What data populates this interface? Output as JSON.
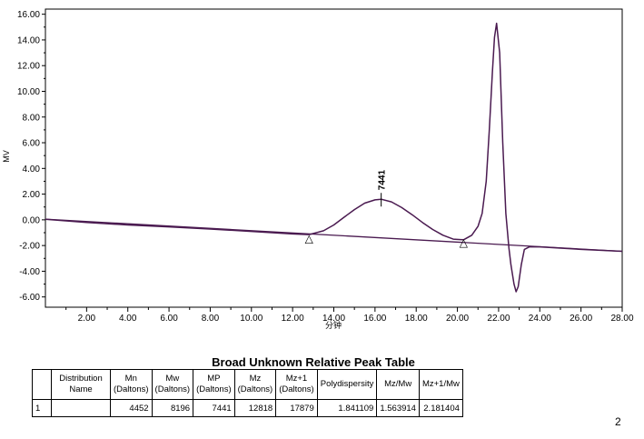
{
  "chart_data": {
    "type": "line",
    "xlabel": "分钟",
    "ylabel": "MV",
    "xlim": [
      0,
      28
    ],
    "ylim": [
      -6.8,
      16.4
    ],
    "x_ticks": [
      "2.00",
      "4.00",
      "6.00",
      "8.00",
      "10.00",
      "12.00",
      "14.00",
      "16.00",
      "18.00",
      "20.00",
      "22.00",
      "24.00",
      "26.00",
      "28.00"
    ],
    "y_ticks": [
      "-6.00",
      "-4.00",
      "-2.00",
      "0.00",
      "2.00",
      "4.00",
      "6.00",
      "8.00",
      "10.00",
      "12.00",
      "14.00",
      "16.00"
    ],
    "grid": false,
    "series": [
      {
        "color": "#4a1a50",
        "x": [
          0,
          2,
          4,
          6,
          8,
          10,
          11,
          12,
          12.8,
          13.5,
          14,
          14.5,
          15,
          15.5,
          16,
          16.3,
          16.8,
          17.3,
          17.8,
          18.3,
          18.8,
          19.3,
          19.8,
          20.3,
          20.7,
          21.0,
          21.2,
          21.4,
          21.55,
          21.7,
          21.8,
          21.9,
          22.05,
          22.2,
          22.35,
          22.5,
          22.6,
          22.75,
          22.85,
          22.95,
          23.1,
          23.25,
          23.5,
          24,
          26,
          28
        ],
        "y": [
          0.05,
          -0.2,
          -0.4,
          -0.55,
          -0.72,
          -0.9,
          -1.0,
          -1.1,
          -1.15,
          -0.85,
          -0.4,
          0.2,
          0.8,
          1.3,
          1.55,
          1.6,
          1.4,
          0.95,
          0.4,
          -0.2,
          -0.75,
          -1.2,
          -1.5,
          -1.55,
          -1.2,
          -0.5,
          0.5,
          3.0,
          7.0,
          11.5,
          14.2,
          15.3,
          13.0,
          6.0,
          0.5,
          -2.2,
          -3.5,
          -5.0,
          -5.6,
          -5.2,
          -3.5,
          -2.3,
          -2.1,
          -2.1,
          -2.3,
          -2.45
        ]
      }
    ],
    "baseline": {
      "x": [
        0,
        28
      ],
      "y": [
        0.05,
        -2.45
      ],
      "segment_x": [
        12.8,
        20.3
      ],
      "segment_y": [
        -1.25,
        -1.55
      ]
    },
    "annotations": [
      {
        "text": "7441",
        "x": 16.3,
        "y": 1.6
      },
      {
        "text": "△",
        "x": 12.8,
        "y": -1.25
      },
      {
        "text": "△",
        "x": 20.3,
        "y": -1.55
      }
    ]
  },
  "table": {
    "title": "Broad Unknown Relative Peak Table",
    "headers": [
      [
        "",
        ""
      ],
      [
        "Distribution",
        "Name"
      ],
      [
        "Mn",
        "(Daltons)"
      ],
      [
        "Mw",
        "(Daltons)"
      ],
      [
        "MP",
        "(Daltons)"
      ],
      [
        "Mz",
        "(Daltons)"
      ],
      [
        "Mz+1",
        "(Daltons)"
      ],
      [
        "Polydispersity",
        ""
      ],
      [
        "Mz/Mw",
        ""
      ],
      [
        "Mz+1/Mw",
        ""
      ]
    ],
    "rows": [
      [
        "1",
        "",
        "4452",
        "8196",
        "7441",
        "12818",
        "17879",
        "1.841109",
        "1.563914",
        "2.181404"
      ]
    ]
  },
  "page_number": "2"
}
